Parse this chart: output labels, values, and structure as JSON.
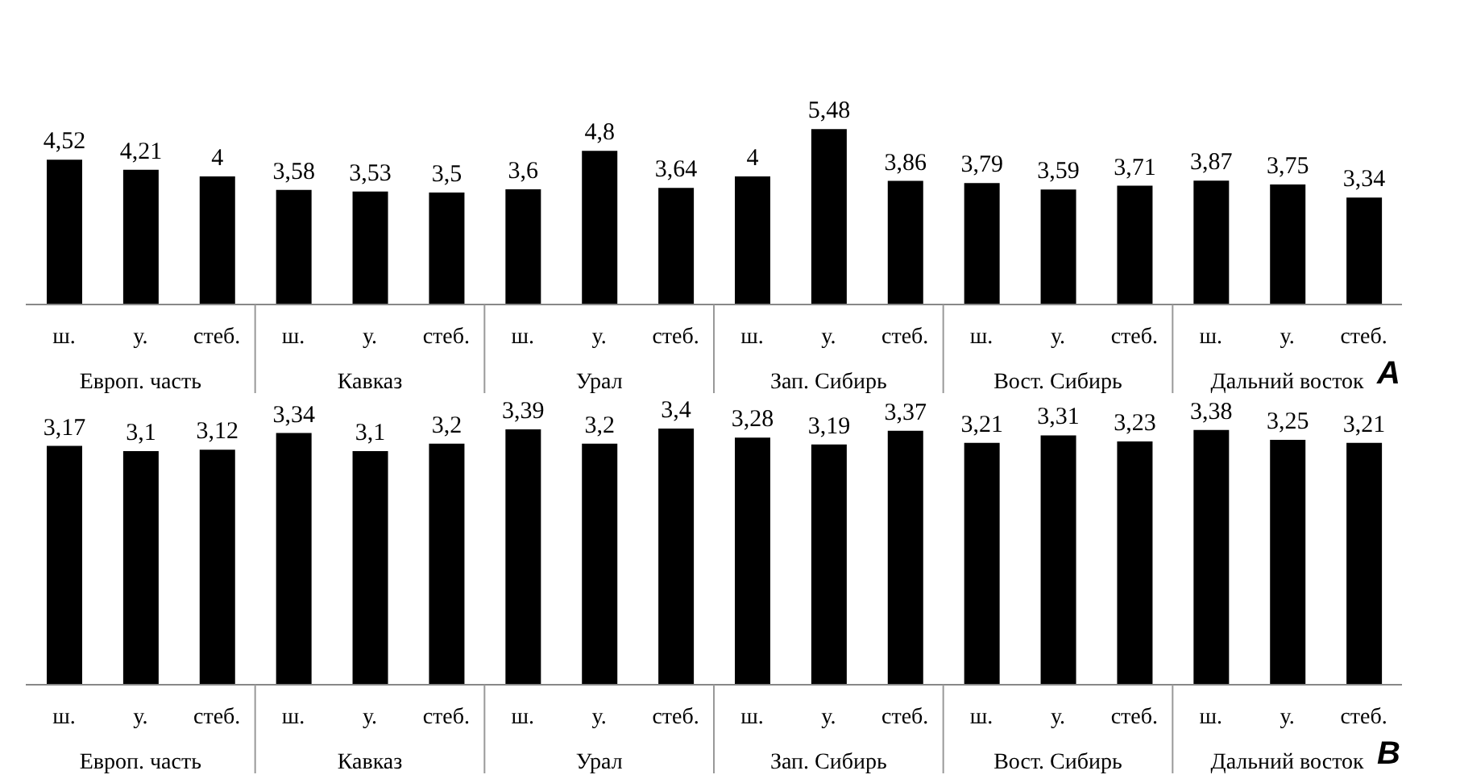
{
  "chart_data": [
    {
      "type": "bar",
      "title": "A",
      "categories": [
        "ш.",
        "у.",
        "стеб.",
        "ш.",
        "у.",
        "стеб.",
        "ш.",
        "у.",
        "стеб.",
        "ш.",
        "у.",
        "стеб.",
        "ш.",
        "у.",
        "стеб.",
        "ш.",
        "у.",
        "стеб."
      ],
      "values": [
        4.52,
        4.21,
        4,
        3.58,
        3.53,
        3.5,
        3.6,
        4.8,
        3.64,
        4,
        5.48,
        3.86,
        3.79,
        3.59,
        3.71,
        3.87,
        3.75,
        3.34
      ],
      "value_labels": [
        "4,52",
        "4,21",
        "4",
        "3,58",
        "3,53",
        "3,5",
        "3,6",
        "4,8",
        "3,64",
        "4",
        "5,48",
        "3,86",
        "3,79",
        "3,59",
        "3,71",
        "3,87",
        "3,75",
        "3,34"
      ],
      "color": "#000000",
      "tick_labels": "x",
      "grid": false,
      "legend": false,
      "annotations": [
        "Европ. часть",
        "Кавказ",
        "Урал",
        "Зап. Сибирь",
        "Вост. Сибирь",
        "Дальний восток"
      ]
    },
    {
      "type": "bar",
      "title": "B",
      "categories": [
        "ш.",
        "у.",
        "стеб.",
        "ш.",
        "у.",
        "стеб.",
        "ш.",
        "у.",
        "стеб.",
        "ш.",
        "у.",
        "стеб.",
        "ш.",
        "у.",
        "стеб.",
        "ш.",
        "у.",
        "стеб."
      ],
      "values": [
        3.17,
        3.1,
        3.12,
        3.34,
        3.1,
        3.2,
        3.39,
        3.2,
        3.4,
        3.28,
        3.19,
        3.37,
        3.21,
        3.31,
        3.23,
        3.38,
        3.25,
        3.21
      ],
      "value_labels": [
        "3,17",
        "3,1",
        "3,12",
        "3,34",
        "3,1",
        "3,2",
        "3,39",
        "3,2",
        "3,4",
        "3,28",
        "3,19",
        "3,37",
        "3,21",
        "3,31",
        "3,23",
        "3,38",
        "3,25",
        "3,21"
      ],
      "color": "#000000",
      "tick_labels": "x",
      "grid": false,
      "legend": false,
      "annotations": [
        "Европ. часть",
        "Кавказ",
        "Урал",
        "Зап. Сибирь",
        "Вост. Сибирь",
        "Дальний восток"
      ]
    }
  ]
}
